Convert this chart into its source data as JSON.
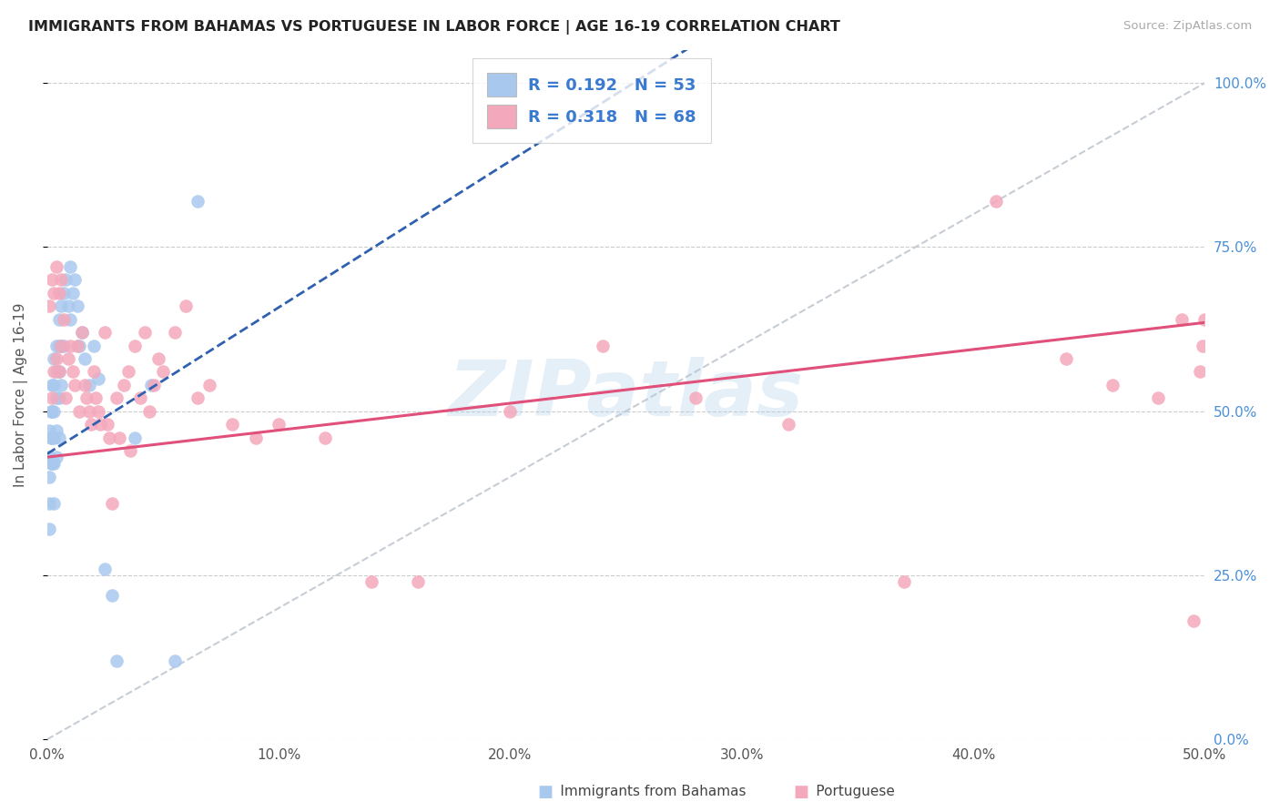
{
  "title": "IMMIGRANTS FROM BAHAMAS VS PORTUGUESE IN LABOR FORCE | AGE 16-19 CORRELATION CHART",
  "source": "Source: ZipAtlas.com",
  "ylabel": "In Labor Force | Age 16-19",
  "xlim": [
    0.0,
    0.5
  ],
  "ylim": [
    0.0,
    1.05
  ],
  "xtick_vals": [
    0.0,
    0.1,
    0.2,
    0.3,
    0.4,
    0.5
  ],
  "xticklabels": [
    "0.0%",
    "10.0%",
    "20.0%",
    "30.0%",
    "40.0%",
    "50.0%"
  ],
  "ytick_vals": [
    0.0,
    0.25,
    0.5,
    0.75,
    1.0
  ],
  "yticklabels_right": [
    "0.0%",
    "25.0%",
    "50.0%",
    "75.0%",
    "100.0%"
  ],
  "bahamas_color": "#a8c8ee",
  "portuguese_color": "#f4a8bb",
  "bahamas_line_color": "#3060b0",
  "portuguese_line_color": "#e0507a",
  "diagonal_color": "#c0c8d0",
  "background_color": "#ffffff",
  "watermark": "ZIPatlas",
  "legend_color": "#3a7ad0",
  "bahamas_x": [
    0.001,
    0.001,
    0.001,
    0.001,
    0.001,
    0.0015,
    0.0015,
    0.0015,
    0.002,
    0.002,
    0.002,
    0.002,
    0.003,
    0.003,
    0.003,
    0.003,
    0.003,
    0.003,
    0.004,
    0.004,
    0.004,
    0.004,
    0.004,
    0.005,
    0.005,
    0.005,
    0.005,
    0.005,
    0.006,
    0.006,
    0.006,
    0.007,
    0.007,
    0.008,
    0.009,
    0.01,
    0.01,
    0.011,
    0.012,
    0.013,
    0.014,
    0.015,
    0.016,
    0.018,
    0.02,
    0.022,
    0.025,
    0.028,
    0.03,
    0.038,
    0.045,
    0.055,
    0.065
  ],
  "bahamas_y": [
    0.47,
    0.43,
    0.4,
    0.36,
    0.32,
    0.5,
    0.46,
    0.42,
    0.54,
    0.5,
    0.46,
    0.42,
    0.58,
    0.54,
    0.5,
    0.46,
    0.42,
    0.36,
    0.6,
    0.56,
    0.52,
    0.47,
    0.43,
    0.64,
    0.6,
    0.56,
    0.52,
    0.46,
    0.66,
    0.6,
    0.54,
    0.68,
    0.6,
    0.7,
    0.66,
    0.72,
    0.64,
    0.68,
    0.7,
    0.66,
    0.6,
    0.62,
    0.58,
    0.54,
    0.6,
    0.55,
    0.26,
    0.22,
    0.12,
    0.46,
    0.54,
    0.12,
    0.82
  ],
  "portuguese_x": [
    0.001,
    0.002,
    0.002,
    0.003,
    0.003,
    0.004,
    0.004,
    0.005,
    0.005,
    0.006,
    0.006,
    0.007,
    0.008,
    0.009,
    0.01,
    0.011,
    0.012,
    0.013,
    0.014,
    0.015,
    0.016,
    0.017,
    0.018,
    0.019,
    0.02,
    0.021,
    0.022,
    0.023,
    0.025,
    0.026,
    0.027,
    0.028,
    0.03,
    0.031,
    0.033,
    0.035,
    0.036,
    0.038,
    0.04,
    0.042,
    0.044,
    0.046,
    0.048,
    0.05,
    0.055,
    0.06,
    0.065,
    0.07,
    0.08,
    0.09,
    0.1,
    0.12,
    0.14,
    0.16,
    0.2,
    0.24,
    0.28,
    0.32,
    0.37,
    0.41,
    0.44,
    0.46,
    0.48,
    0.49,
    0.495,
    0.498,
    0.499,
    0.5
  ],
  "portuguese_y": [
    0.66,
    0.7,
    0.52,
    0.68,
    0.56,
    0.72,
    0.58,
    0.68,
    0.56,
    0.7,
    0.6,
    0.64,
    0.52,
    0.58,
    0.6,
    0.56,
    0.54,
    0.6,
    0.5,
    0.62,
    0.54,
    0.52,
    0.5,
    0.48,
    0.56,
    0.52,
    0.5,
    0.48,
    0.62,
    0.48,
    0.46,
    0.36,
    0.52,
    0.46,
    0.54,
    0.56,
    0.44,
    0.6,
    0.52,
    0.62,
    0.5,
    0.54,
    0.58,
    0.56,
    0.62,
    0.66,
    0.52,
    0.54,
    0.48,
    0.46,
    0.48,
    0.46,
    0.24,
    0.24,
    0.5,
    0.6,
    0.52,
    0.48,
    0.24,
    0.82,
    0.58,
    0.54,
    0.52,
    0.64,
    0.18,
    0.56,
    0.6,
    0.64
  ],
  "bahamas_line_x0": 0.0,
  "bahamas_line_y0": 0.435,
  "bahamas_line_x1": 0.065,
  "bahamas_line_y1": 0.58,
  "portuguese_line_x0": 0.0,
  "portuguese_line_y0": 0.43,
  "portuguese_line_x1": 0.5,
  "portuguese_line_y1": 0.635
}
